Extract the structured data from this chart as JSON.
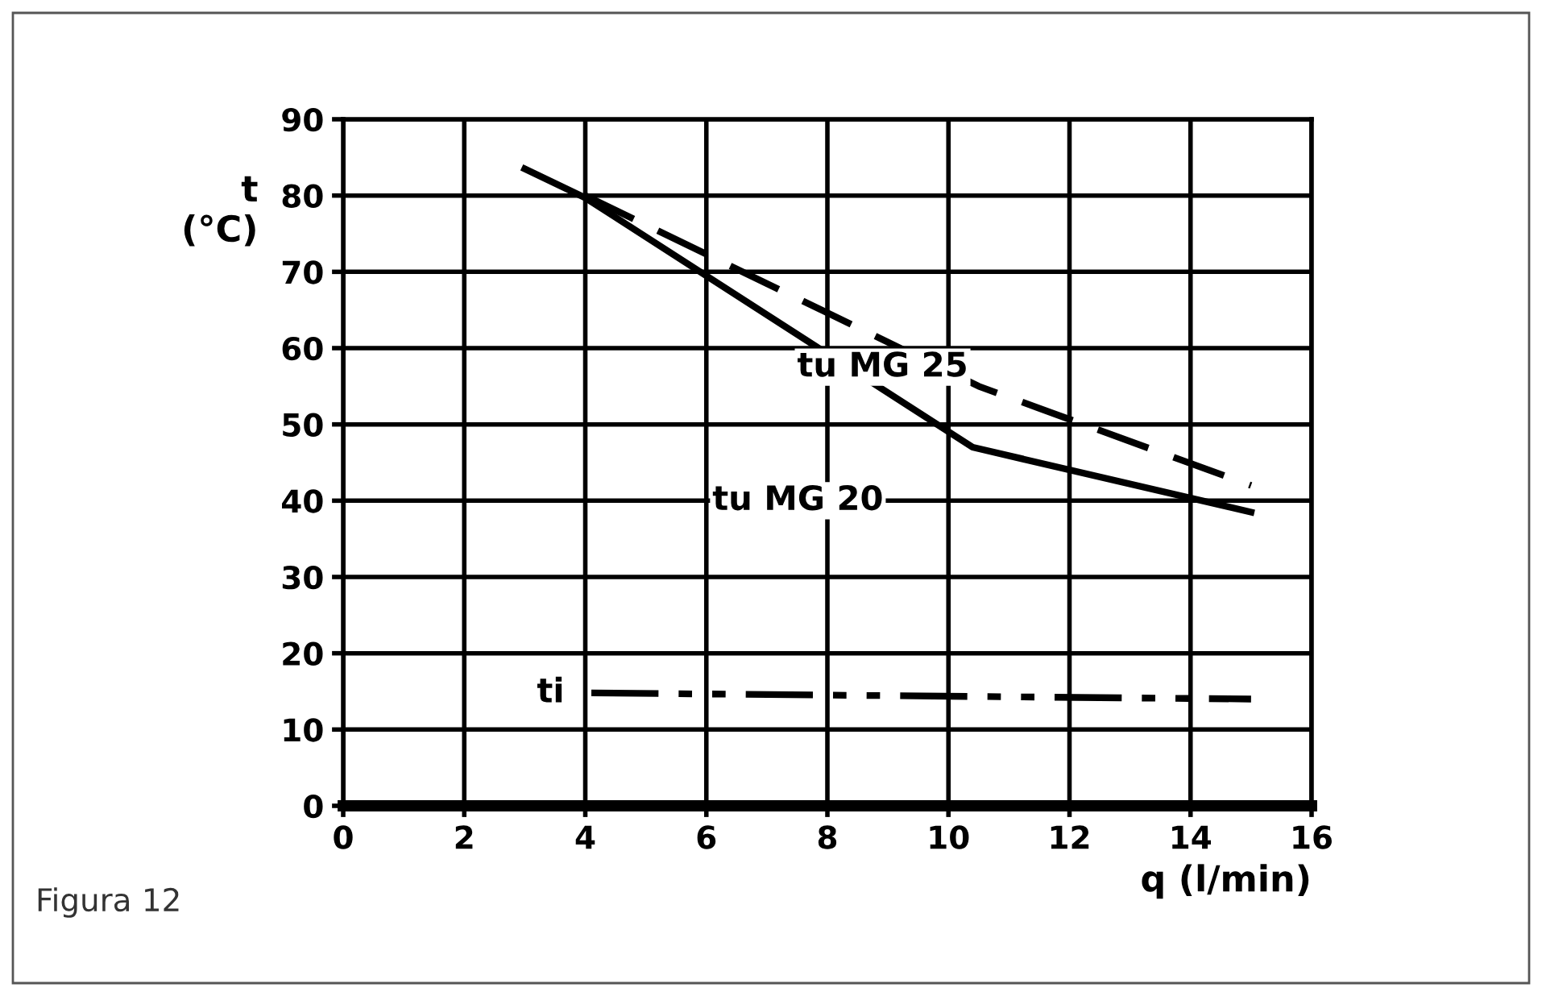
{
  "chart_data": {
    "type": "line",
    "xlabel": "q (l/min)",
    "ylabel": "t\n(°C)",
    "xlim": [
      0,
      16
    ],
    "ylim": [
      0,
      90
    ],
    "xticks": [
      0,
      2,
      4,
      6,
      8,
      10,
      12,
      14,
      16
    ],
    "yticks": [
      0,
      10,
      20,
      30,
      40,
      50,
      60,
      70,
      80,
      90
    ],
    "grid": true,
    "marker": "none",
    "series": [
      {
        "name": "tu MG 25",
        "color": "#000000",
        "line_style": "dashed",
        "x": [
          4,
          10.5,
          15
        ],
        "values": [
          80,
          55,
          42
        ]
      },
      {
        "name": "tu MG 20",
        "color": "#000000",
        "line_style": "solid",
        "x": [
          3,
          4,
          10.4,
          15
        ],
        "values": [
          83.5,
          79.7,
          47,
          38.5
        ]
      },
      {
        "name": "ti",
        "color": "#000000",
        "line_style": "dashdot",
        "x": [
          4.1,
          15
        ],
        "values": [
          14.8,
          14
        ]
      }
    ],
    "annotations": [
      "Figura 12"
    ]
  }
}
